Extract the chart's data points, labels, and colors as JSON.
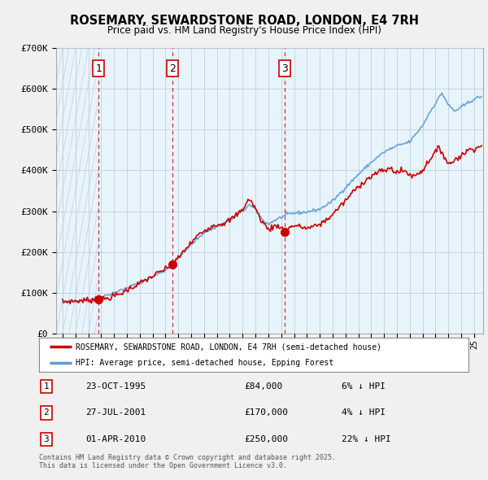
{
  "title": "ROSEMARY, SEWARDSTONE ROAD, LONDON, E4 7RH",
  "subtitle": "Price paid vs. HM Land Registry's House Price Index (HPI)",
  "ylim": [
    0,
    700000
  ],
  "yticks": [
    0,
    100000,
    200000,
    300000,
    400000,
    500000,
    600000,
    700000
  ],
  "ytick_labels": [
    "£0",
    "£100K",
    "£200K",
    "£300K",
    "£400K",
    "£500K",
    "£600K",
    "£700K"
  ],
  "xlim_start": 1992.5,
  "xlim_end": 2025.7,
  "sales": [
    {
      "year": 1995.81,
      "price": 84000,
      "label": "1"
    },
    {
      "year": 2001.57,
      "price": 170000,
      "label": "2"
    },
    {
      "year": 2010.25,
      "price": 250000,
      "label": "3"
    }
  ],
  "sale_dates": [
    "23-OCT-1995",
    "27-JUL-2001",
    "01-APR-2010"
  ],
  "sale_prices": [
    "£84,000",
    "£170,000",
    "£250,000"
  ],
  "sale_hpi": [
    "6% ↓ HPI",
    "4% ↓ HPI",
    "22% ↓ HPI"
  ],
  "red_line_color": "#cc0000",
  "blue_line_color": "#5b9bd5",
  "plot_bg_color": "#ddeeff",
  "plot_bg_hatch_color": "#f0f0f0",
  "background_color": "#f0f0f0",
  "legend_label_red": "ROSEMARY, SEWARDSTONE ROAD, LONDON, E4 7RH (semi-detached house)",
  "legend_label_blue": "HPI: Average price, semi-detached house, Epping Forest",
  "footer": "Contains HM Land Registry data © Crown copyright and database right 2025.\nThis data is licensed under the Open Government Licence v3.0."
}
